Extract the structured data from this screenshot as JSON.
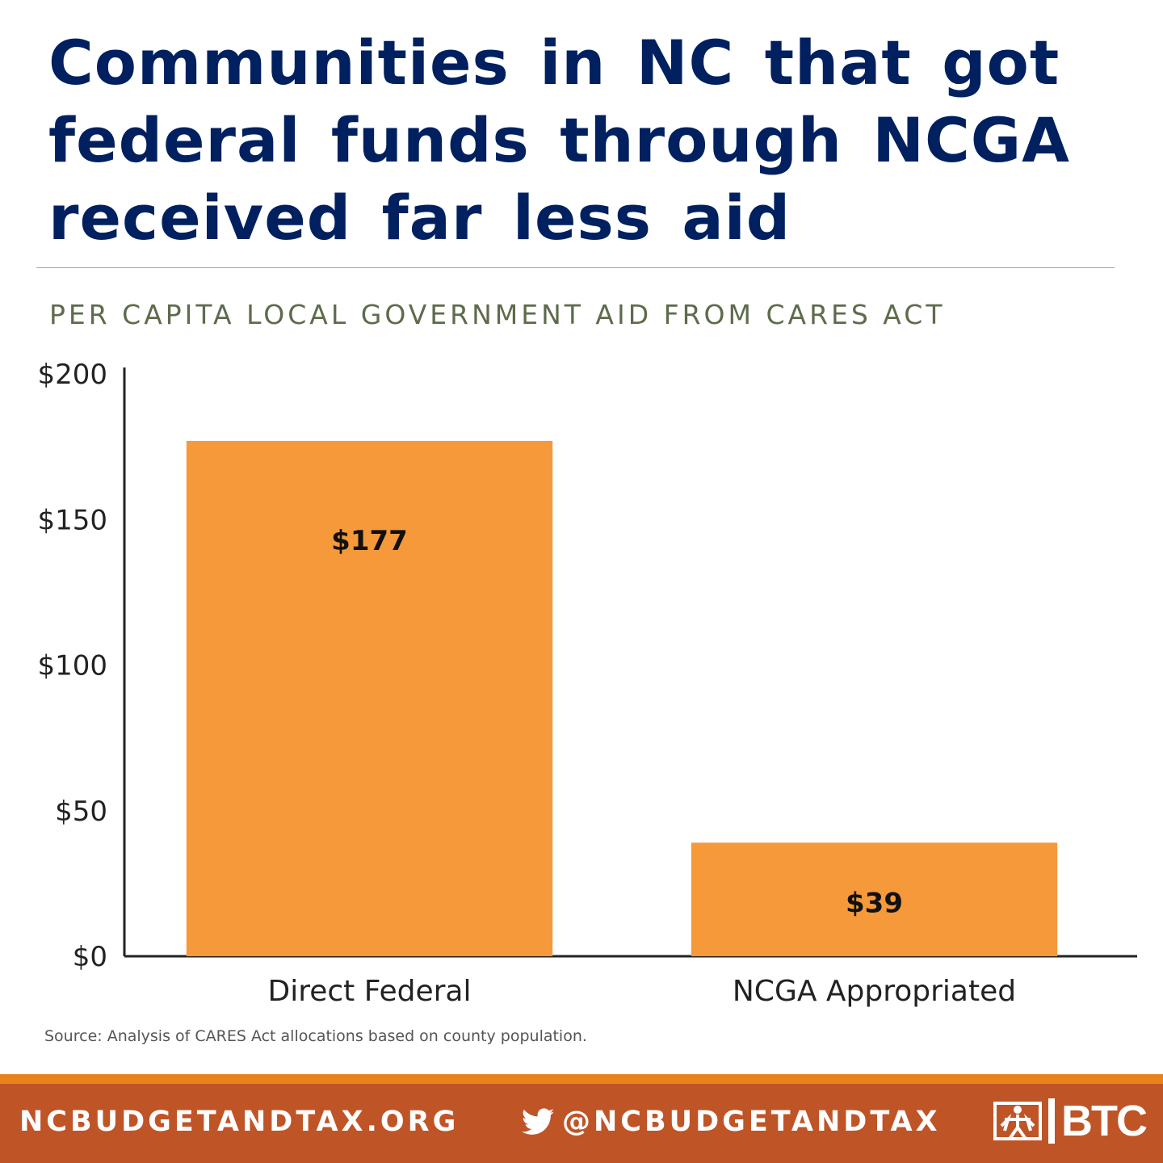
{
  "title": "Communities in NC that got federal funds through NCGA received far less aid",
  "subtitle": "PER CAPITA LOCAL GOVERNMENT AID FROM CARES ACT",
  "source": "Source: Analysis of CARES Act allocations based on county population.",
  "footer": {
    "website": "NCBUDGETANDTAX.ORG",
    "twitter_handle": "@NCBUDGETANDTAX",
    "twitter_icon": "twitter-bird-icon",
    "logo_text": "BTC",
    "logo_icon": "btc-figures-icon"
  },
  "colors": {
    "title": "#002060",
    "bar": "#f5993a",
    "footer": "#bf5427",
    "footer_accent": "#e8831c"
  },
  "chart_data": {
    "type": "bar",
    "categories": [
      "Direct Federal",
      "NCGA Appropriated"
    ],
    "values": [
      177,
      39
    ],
    "value_labels": [
      "$177",
      "$39"
    ],
    "ylim": [
      0,
      200
    ],
    "y_ticks": [
      0,
      50,
      100,
      150,
      200
    ],
    "y_tick_labels": [
      "$0",
      "$50",
      "$100",
      "$150",
      "$200"
    ],
    "grid": false,
    "legend": "none"
  }
}
